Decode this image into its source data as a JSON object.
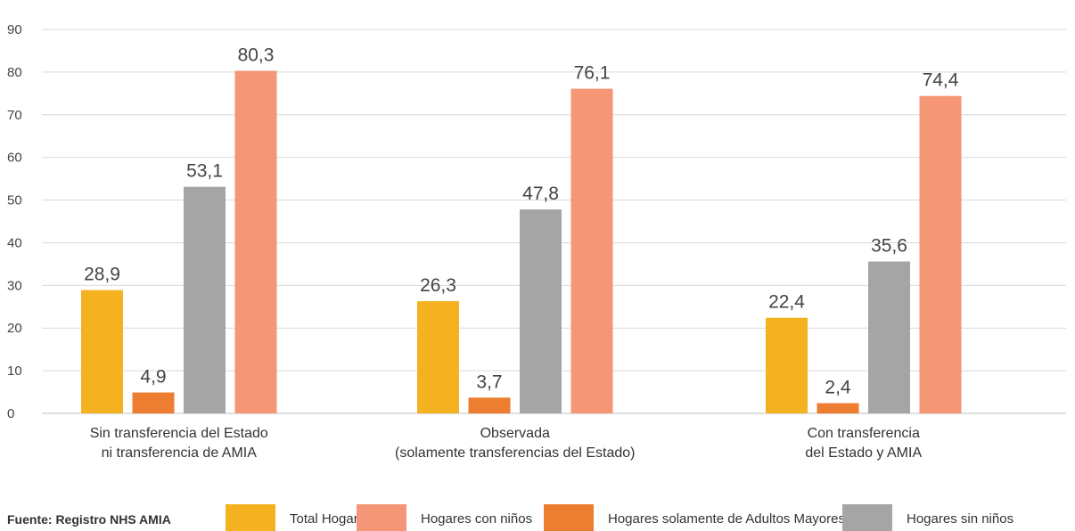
{
  "chart_data": {
    "type": "bar",
    "categories": [
      [
        "Sin transferencia del Estado",
        "ni transferencia de AMIA"
      ],
      [
        "Observada",
        "(solamente transferencias del Estado)"
      ],
      [
        "Con transferencia",
        "del Estado y AMIA"
      ]
    ],
    "series": [
      {
        "name": "Total Hogares",
        "color": "#f4b120",
        "values": [
          28.9,
          26.3,
          22.4
        ],
        "labels": [
          "28,9",
          "26,3",
          "22,4"
        ]
      },
      {
        "name": "Hogares solamente de Adultos Mayores",
        "color": "#ed7d31",
        "values": [
          4.9,
          3.7,
          2.4
        ],
        "labels": [
          "4,9",
          "3,7",
          "2,4"
        ]
      },
      {
        "name": "Hogares sin niños",
        "color": "#a5a5a5",
        "values": [
          53.1,
          47.8,
          35.6
        ],
        "labels": [
          "53,1",
          "47,8",
          "35,6"
        ]
      },
      {
        "name": "Hogares con niños",
        "color": "#f59677",
        "values": [
          80.3,
          76.1,
          74.4
        ],
        "labels": [
          "80,3",
          "76,1",
          "74,4"
        ]
      }
    ],
    "ylim": [
      0,
      90
    ],
    "yticks": [
      0,
      10,
      20,
      30,
      40,
      50,
      60,
      70,
      80,
      90
    ],
    "grid": true,
    "xlabel": "",
    "ylabel": "",
    "legend_position": "bottom"
  },
  "source": "Fuente: Registro NHS AMIA",
  "legend": [
    {
      "label": "Total Hogares",
      "color": "#f4b120"
    },
    {
      "label": "Hogares con niños",
      "color": "#f59677"
    },
    {
      "label": "Hogares solamente de Adultos Mayores",
      "color": "#ed7d31"
    },
    {
      "label": "Hogares sin niños",
      "color": "#a5a5a5"
    }
  ]
}
